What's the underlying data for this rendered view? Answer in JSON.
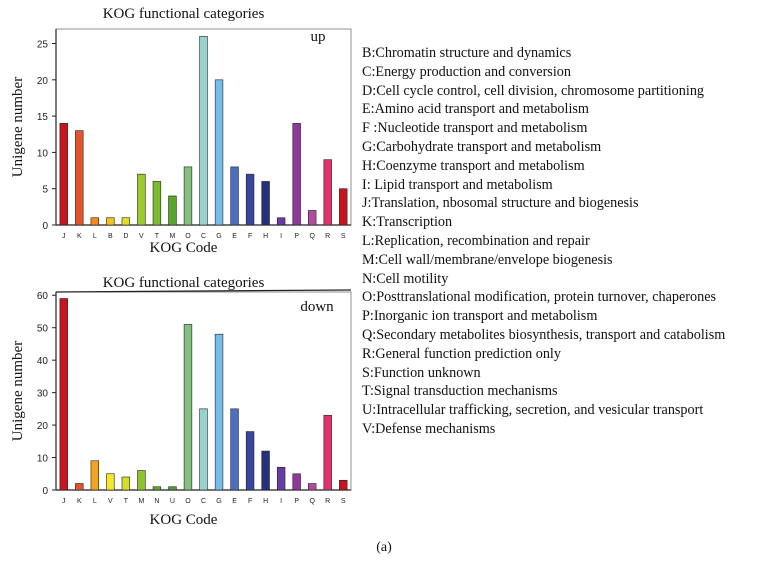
{
  "chart_data": [
    {
      "type": "bar",
      "title": "KOG functional categories",
      "annotation": "up",
      "xlabel": "KOG Code",
      "ylabel": "Unigene number",
      "ylim": [
        0,
        27
      ],
      "yticks": [
        0,
        5,
        10,
        15,
        20,
        25
      ],
      "categories": [
        "J",
        "K",
        "L",
        "B",
        "D",
        "V",
        "T",
        "M",
        "O",
        "C",
        "G",
        "E",
        "F",
        "H",
        "I",
        "P",
        "Q",
        "R",
        "S"
      ],
      "values": [
        14,
        13,
        1,
        1,
        1,
        7,
        6,
        4,
        8,
        26,
        20,
        8,
        7,
        6,
        1,
        14,
        2,
        9,
        5
      ],
      "colors": [
        "#c8141e",
        "#e4542a",
        "#f28c1e",
        "#f2c21b",
        "#e2de2a",
        "#9ccb2c",
        "#7cba2e",
        "#5aa62a",
        "#86c080",
        "#98d2cc",
        "#76bcec",
        "#4e6fbf",
        "#37479f",
        "#26307a",
        "#6a3ba6",
        "#8b3a97",
        "#b24b9e",
        "#e0306e",
        "#c8141e"
      ]
    },
    {
      "type": "bar",
      "title": "KOG functional categories",
      "annotation": "down",
      "xlabel": "KOG Code",
      "ylabel": "Unigene number",
      "ylim": [
        0,
        61
      ],
      "yticks": [
        0,
        10,
        20,
        30,
        40,
        50,
        60
      ],
      "categories": [
        "J",
        "K",
        "L",
        "V",
        "T",
        "M",
        "N",
        "U",
        "O",
        "C",
        "G",
        "E",
        "F",
        "H",
        "I",
        "P",
        "Q",
        "R",
        "S"
      ],
      "values": [
        59,
        2,
        9,
        5,
        4,
        6,
        1,
        1,
        51,
        25,
        48,
        25,
        18,
        12,
        7,
        5,
        2,
        23,
        3
      ],
      "colors": [
        "#c8141e",
        "#e4542a",
        "#f2a41e",
        "#f5e82a",
        "#d6dc2a",
        "#8ec42c",
        "#5ea82e",
        "#4a9a36",
        "#86c080",
        "#98d2cc",
        "#76bcec",
        "#4e6fbf",
        "#37479f",
        "#26307a",
        "#6a3ba6",
        "#8b3a97",
        "#b24b9e",
        "#e0306e",
        "#c8141e"
      ]
    }
  ],
  "legend": [
    "B:Chromatin structure and dynamics",
    "C:Energy production and conversion",
    "D:Cell cycle control,  cell division, chromosome partitioning",
    "E:Amino acid transport and metabolism",
    "F :Nucleotide transport and metabolism",
    "G:Carbohydrate transport and metabolism",
    "H:Coenzyme transport and metabolism",
    "I: Lipid transport and metabolism",
    "J:Translation,  nbosomal structure and biogenesis",
    "K:Transcription",
    "L:Replication, recombination and repair",
    "M:Cell wall/membrane/envelope biogenesis",
    "N:Cell motility",
    "O:Posttranslational modification, protein turnover, chaperones",
    "P:Inorganic ion transport and metabolism",
    "Q:Secondary metabolites biosynthesis, transport and catabolism",
    "R:General function prediction only",
    "S:Function unknown",
    "T:Signal transduction mechanisms",
    "U:Intracellular trafficking, secretion, and vesicular transport",
    "V:Defense mechanisms"
  ],
  "caption": "(a)"
}
